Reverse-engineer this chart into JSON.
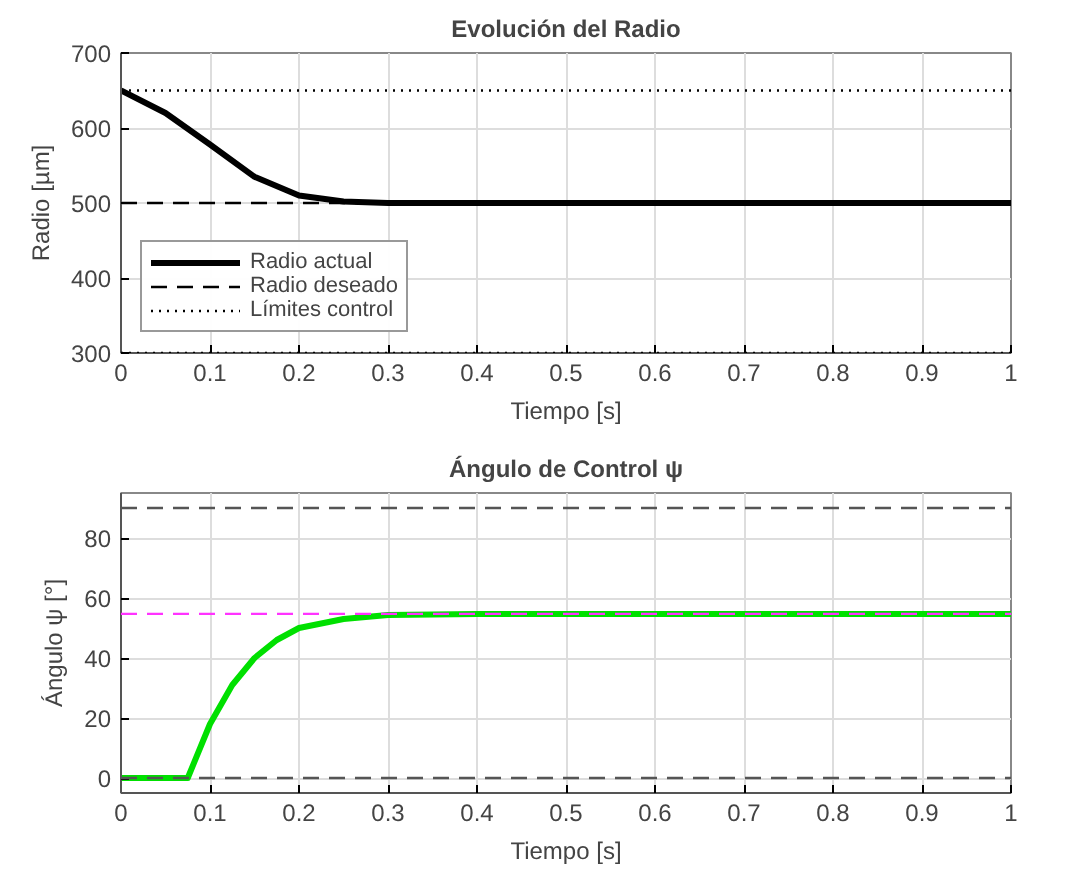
{
  "chart_data": [
    {
      "type": "line",
      "title": "Evolución del Radio",
      "xlabel": "Tiempo [s]",
      "ylabel": "Radio [µm]",
      "xlim": [
        0,
        1
      ],
      "xticks": [
        0,
        {
          "value": 0.1,
          "label": "0.1"
        },
        {
          "value": 0.2,
          "label": "0.2"
        },
        {
          "value": 0.3,
          "label": "0.3"
        },
        {
          "value": 0.4,
          "label": "0.4"
        },
        {
          "value": 0.5,
          "label": "0.5"
        },
        {
          "value": 0.6,
          "label": "0.6"
        },
        {
          "value": 0.7,
          "label": "0.7"
        },
        {
          "value": 0.8,
          "label": "0.8"
        },
        {
          "value": 0.9,
          "label": "0.9"
        },
        1
      ],
      "ylim": [
        300,
        700
      ],
      "yticks": [
        300,
        400,
        500,
        600,
        700
      ],
      "grid": true,
      "legend": "bottom left",
      "series": [
        {
          "name": "Radio actual",
          "color": "#000000",
          "line_style": "solid",
          "x": [
            0,
            0.05,
            0.1,
            0.15,
            0.2,
            0.25,
            0.3,
            0.4,
            1
          ],
          "values": [
            650,
            620,
            578,
            535,
            510,
            502,
            500,
            500,
            500
          ]
        },
        {
          "name": "Radio deseado",
          "color": "#000000",
          "line_style": "dashed",
          "x": [
            0,
            1
          ],
          "values": [
            500,
            500
          ]
        },
        {
          "name": "Límites control",
          "color": "#000000",
          "line_style": "dotted",
          "x": [
            0,
            1
          ],
          "values": [
            650,
            650
          ]
        }
      ],
      "ref_lines": [
        {
          "axis": "y",
          "value": 300,
          "color": "#000000",
          "line_style": "dotted"
        }
      ]
    },
    {
      "type": "line",
      "title": "Ángulo de Control ψ",
      "xlabel": "Tiempo [s]",
      "ylabel": "Ángulo ψ [°]",
      "xlim": [
        0,
        1
      ],
      "xticks": [
        0,
        {
          "value": 0.1,
          "label": "0.1"
        },
        {
          "value": 0.2,
          "label": "0.2"
        },
        {
          "value": 0.3,
          "label": "0.3"
        },
        {
          "value": 0.4,
          "label": "0.4"
        },
        {
          "value": 0.5,
          "label": "0.5"
        },
        {
          "value": 0.6,
          "label": "0.6"
        },
        {
          "value": 0.7,
          "label": "0.7"
        },
        {
          "value": 0.8,
          "label": "0.8"
        },
        {
          "value": 0.9,
          "label": "0.9"
        },
        1
      ],
      "ylim": [
        -5,
        95
      ],
      "yticks": [
        0,
        20,
        40,
        60,
        80
      ],
      "grid": true,
      "series": [
        {
          "color": "#00e000",
          "line_style": "solid",
          "x": [
            0,
            0.075,
            0.1,
            0.125,
            0.15,
            0.175,
            0.2,
            0.25,
            0.3,
            0.4,
            1
          ],
          "values": [
            0,
            0,
            18,
            31,
            40,
            46,
            50,
            53,
            54.3,
            54.7,
            54.7
          ]
        }
      ],
      "ref_lines": [
        {
          "axis": "y",
          "value": 90,
          "color": "#555555",
          "line_style": "dashed"
        },
        {
          "axis": "y",
          "value": 54.7,
          "color": "#ff33ff",
          "line_style": "dashed"
        },
        {
          "axis": "y",
          "value": 0,
          "color": "#555555",
          "line_style": "dashed"
        }
      ]
    }
  ]
}
